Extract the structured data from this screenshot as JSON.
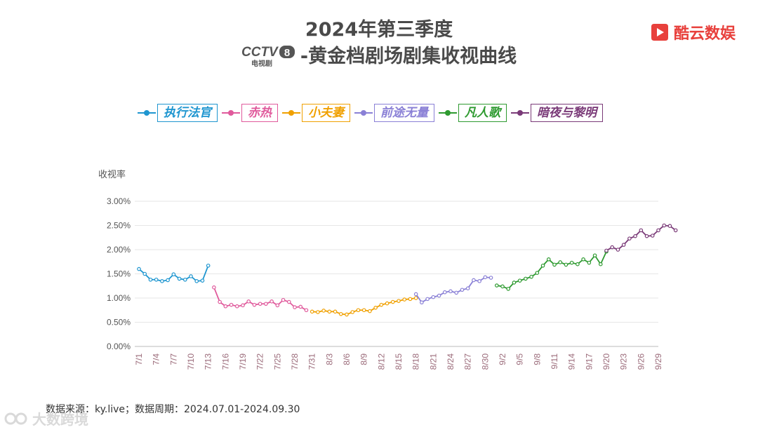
{
  "header": {
    "title_line1": "2024年第三季度",
    "channel_logo_main": "CCTV",
    "channel_logo_num": "8",
    "channel_logo_sub": "电视剧",
    "title_line2": "-黄金档剧场剧集收视曲线"
  },
  "brand": {
    "name": "酷云数娱",
    "icon": "play-logo-icon",
    "color": "#e8403c"
  },
  "source": "数据来源：ky.live；数据周期：2024.07.01-2024.09.30",
  "watermark": {
    "text": "大数跨境",
    "icon": "watermark-logo-icon"
  },
  "chart_data": {
    "type": "line",
    "ylabel": "收视率",
    "ylim": [
      0,
      3.0
    ],
    "yticks": [
      "0.00%",
      "0.50%",
      "1.00%",
      "1.50%",
      "2.00%",
      "2.50%",
      "3.00%"
    ],
    "grid": true,
    "legend_placement": "top",
    "xlabels": [
      "7/1",
      "7/4",
      "7/7",
      "7/10",
      "7/13",
      "7/16",
      "7/19",
      "7/22",
      "7/25",
      "7/28",
      "7/31",
      "8/3",
      "8/6",
      "8/9",
      "8/12",
      "8/15",
      "8/18",
      "8/21",
      "8/24",
      "8/27",
      "8/30",
      "9/2",
      "9/5",
      "9/8",
      "9/11",
      "9/14",
      "9/17",
      "9/20",
      "9/23",
      "9/26",
      "9/29"
    ],
    "series": [
      {
        "name": "执行法官",
        "color": "#1f96d0",
        "start_day": 0,
        "values": [
          1.6,
          1.5,
          1.38,
          1.38,
          1.35,
          1.37,
          1.49,
          1.4,
          1.38,
          1.45,
          1.35,
          1.36,
          1.67
        ]
      },
      {
        "name": "赤热",
        "color": "#e05a9c",
        "start_day": 13,
        "values": [
          1.22,
          0.92,
          0.83,
          0.86,
          0.83,
          0.85,
          0.93,
          0.86,
          0.88,
          0.88,
          0.93,
          0.85,
          0.96,
          0.92,
          0.81,
          0.82,
          0.75
        ]
      },
      {
        "name": "小夫妻",
        "color": "#f0a000",
        "start_day": 30,
        "values": [
          0.72,
          0.71,
          0.74,
          0.72,
          0.72,
          0.67,
          0.66,
          0.71,
          0.75,
          0.75,
          0.73,
          0.8,
          0.86,
          0.89,
          0.92,
          0.94,
          0.97,
          0.98,
          1.0
        ]
      },
      {
        "name": "前途无量",
        "color": "#8a80d6",
        "start_day": 48,
        "values": [
          1.08,
          0.91,
          0.98,
          1.02,
          1.05,
          1.12,
          1.14,
          1.11,
          1.17,
          1.2,
          1.37,
          1.35,
          1.43,
          1.42
        ]
      },
      {
        "name": "凡人歌",
        "color": "#2e9a30",
        "start_day": 62,
        "values": [
          1.26,
          1.24,
          1.19,
          1.32,
          1.36,
          1.4,
          1.44,
          1.52,
          1.67,
          1.8,
          1.69,
          1.74,
          1.69,
          1.73,
          1.7,
          1.8,
          1.73,
          1.88,
          1.7,
          1.96
        ]
      },
      {
        "name": "暗夜与黎明",
        "color": "#7a3a78",
        "start_day": 81,
        "values": [
          1.98,
          2.05,
          2.0,
          2.1,
          2.23,
          2.28,
          2.4,
          2.28,
          2.29,
          2.4,
          2.5,
          2.49,
          2.4
        ]
      }
    ]
  }
}
